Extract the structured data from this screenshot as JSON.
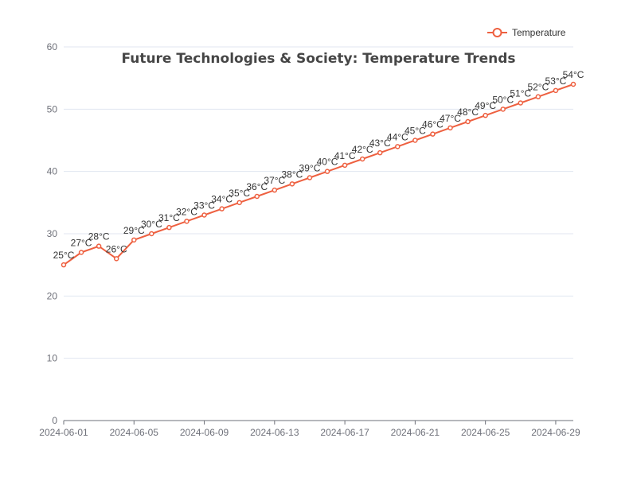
{
  "chart_data": {
    "type": "line",
    "title": "Future Technologies & Society: Temperature Trends",
    "xlabel": "",
    "ylabel": "",
    "ylim": [
      0,
      60
    ],
    "yticks": [
      0,
      10,
      20,
      30,
      40,
      50,
      60
    ],
    "x": [
      "2024-06-01",
      "2024-06-02",
      "2024-06-03",
      "2024-06-04",
      "2024-06-05",
      "2024-06-06",
      "2024-06-07",
      "2024-06-08",
      "2024-06-09",
      "2024-06-10",
      "2024-06-11",
      "2024-06-12",
      "2024-06-13",
      "2024-06-14",
      "2024-06-15",
      "2024-06-16",
      "2024-06-17",
      "2024-06-18",
      "2024-06-19",
      "2024-06-20",
      "2024-06-21",
      "2024-06-22",
      "2024-06-23",
      "2024-06-24",
      "2024-06-25",
      "2024-06-26",
      "2024-06-27",
      "2024-06-28",
      "2024-06-29",
      "2024-06-30"
    ],
    "x_tick_labels": [
      "2024-06-01",
      "2024-06-05",
      "2024-06-09",
      "2024-06-13",
      "2024-06-17",
      "2024-06-21",
      "2024-06-25",
      "2024-06-29"
    ],
    "series": [
      {
        "name": "Temperature",
        "color": "#ee6040",
        "values": [
          25,
          27,
          28,
          26,
          29,
          30,
          31,
          32,
          33,
          34,
          35,
          36,
          37,
          38,
          39,
          40,
          41,
          42,
          43,
          44,
          45,
          46,
          47,
          48,
          49,
          50,
          51,
          52,
          53,
          54
        ],
        "labels": [
          "25°C",
          "27°C",
          "28°C",
          "26°C",
          "29°C",
          "30°C",
          "31°C",
          "32°C",
          "33°C",
          "34°C",
          "35°C",
          "36°C",
          "37°C",
          "38°C",
          "39°C",
          "40°C",
          "41°C",
          "42°C",
          "43°C",
          "44°C",
          "45°C",
          "46°C",
          "47°C",
          "48°C",
          "49°C",
          "50°C",
          "51°C",
          "52°C",
          "53°C",
          "54°C"
        ]
      }
    ],
    "grid": true,
    "legend_position": "top-right"
  }
}
